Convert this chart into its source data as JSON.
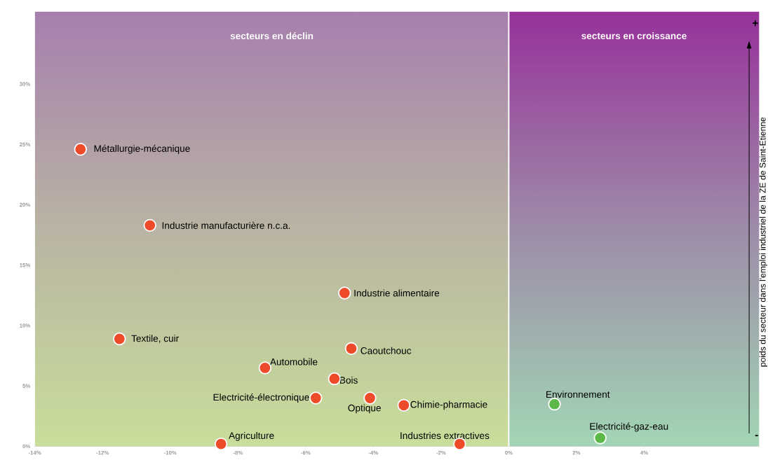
{
  "chart_data": {
    "type": "scatter",
    "ylabel": "poids du secteur dans l'emploi industriel de la ZE de Saint-Etienne",
    "x": [
      -12.65,
      -10.6,
      -4.85,
      -11.5,
      -4.65,
      -7.2,
      -5.15,
      -5.7,
      -4.1,
      -3.1,
      -8.5,
      -1.45,
      1.35,
      2.7
    ],
    "values": [
      24.6,
      18.3,
      12.7,
      8.9,
      8.1,
      6.5,
      5.6,
      4.0,
      4.0,
      3.4,
      0.2,
      0.2,
      3.5,
      0.7
    ],
    "colors": [
      "#ee4b2b",
      "#ee4b2b",
      "#ee4b2b",
      "#ee4b2b",
      "#ee4b2b",
      "#ee4b2b",
      "#ee4b2b",
      "#ee4b2b",
      "#ee4b2b",
      "#ee4b2b",
      "#ee4b2b",
      "#ee4b2b",
      "#5cb848",
      "#5cb848"
    ],
    "marker": "circle",
    "annotations": [
      {
        "text": "Métallurgie-mécanique",
        "x": -12.65,
        "y": 24.6
      },
      {
        "text": "Industrie manufacturière n.c.a.",
        "x": -10.6,
        "y": 18.3
      },
      {
        "text": "Industrie alimentaire",
        "x": -4.85,
        "y": 12.7
      },
      {
        "text": "Textile, cuir",
        "x": -11.5,
        "y": 8.9
      },
      {
        "text": "Caoutchouc",
        "x": -4.65,
        "y": 8.1
      },
      {
        "text": "Automobile",
        "x": -7.2,
        "y": 6.5
      },
      {
        "text": "Bois",
        "x": -5.15,
        "y": 5.6
      },
      {
        "text": "Electricité-électronique",
        "x": -5.7,
        "y": 4.0
      },
      {
        "text": "Optique",
        "x": -4.1,
        "y": 4.0
      },
      {
        "text": "Chimie-pharmacie",
        "x": -3.1,
        "y": 3.4
      },
      {
        "text": "Agriculture",
        "x": -8.5,
        "y": 0.2
      },
      {
        "text": "Industries extractives",
        "x": -1.45,
        "y": 0.2
      },
      {
        "text": "Environnement",
        "x": 1.35,
        "y": 3.5
      },
      {
        "text": "Electricité-gaz-eau",
        "x": 2.7,
        "y": 0.7
      },
      "+",
      "-"
    ],
    "bands": [
      {
        "axis": "x",
        "from": -14,
        "to": 0,
        "label": "secteurs en déclin",
        "color": "#a67fae"
      },
      {
        "axis": "x",
        "from": 0,
        "to": 7.4,
        "label": "secteurs en croissance",
        "color": "#97319a"
      }
    ],
    "ref_lines": [
      {
        "axis": "x",
        "value": 0,
        "color": "#ffffff"
      }
    ],
    "xlim": [
      -14,
      7.4
    ],
    "ylim": [
      0,
      36
    ],
    "xticks": [
      {
        "value": -14,
        "label": "-14%"
      },
      {
        "value": -12,
        "label": "-12%"
      },
      {
        "value": -10,
        "label": "-10%"
      },
      {
        "value": -8,
        "label": "-8%"
      },
      {
        "value": -6,
        "label": "-6%"
      },
      {
        "value": -4,
        "label": "-4%"
      },
      {
        "value": -2,
        "label": "-2%"
      },
      {
        "value": 0,
        "label": "0%"
      },
      {
        "value": 2,
        "label": "2%"
      },
      {
        "value": 4,
        "label": "4%"
      }
    ],
    "yticks": [
      {
        "value": 0,
        "label": "0%"
      },
      {
        "value": 5,
        "label": "5%"
      },
      {
        "value": 10,
        "label": "10%"
      },
      {
        "value": 15,
        "label": "15%"
      },
      {
        "value": 20,
        "label": "20%"
      },
      {
        "value": 25,
        "label": "25%"
      },
      {
        "value": 30,
        "label": "30%"
      }
    ]
  }
}
